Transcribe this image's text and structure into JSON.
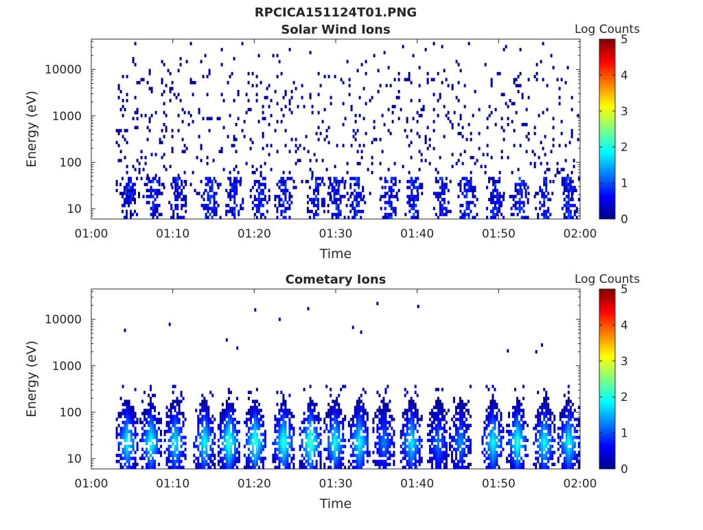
{
  "figure": {
    "title": "RPCICA151124T01.PNG"
  },
  "colorbar_gradient": [
    "#00008f",
    "#0000ff",
    "#0080ff",
    "#00ffff",
    "#80ff80",
    "#ffff00",
    "#ff8000",
    "#ff0000",
    "#800000"
  ],
  "chart_data": [
    {
      "type": "heatmap",
      "title": "Solar Wind Ions",
      "xlabel": "Time",
      "ylabel": "Energy (eV)",
      "x_ticks": [
        "01:00",
        "01:10",
        "01:20",
        "01:30",
        "01:40",
        "01:50",
        "02:00"
      ],
      "x_range_minutes": [
        0,
        60
      ],
      "y_scale": "log",
      "y_ticks": [
        10,
        100,
        1000,
        10000
      ],
      "y_tick_labels": [
        "10",
        "100",
        "1000",
        "10000"
      ],
      "y_range": [
        6,
        45000
      ],
      "colorbar_label": "Log Counts",
      "colorbar_range": [
        0,
        5
      ],
      "colorbar_ticks": [
        "0",
        "1",
        "2",
        "3",
        "4",
        "5"
      ],
      "data_start_minute": 3,
      "low_energy_bursts": [
        4.5,
        7.5,
        10.5,
        14.5,
        17.5,
        20.5,
        23.5,
        27.5,
        30,
        32.5,
        36.5,
        39.5,
        43,
        46,
        49.5,
        52.5,
        55.5,
        58.5
      ],
      "peak_log_counts": 1.2
    },
    {
      "type": "heatmap",
      "title": "Cometary Ions",
      "xlabel": "Time",
      "ylabel": "Energy (eV)",
      "x_ticks": [
        "01:00",
        "01:10",
        "01:20",
        "01:30",
        "01:40",
        "01:50",
        "02:00"
      ],
      "x_range_minutes": [
        0,
        60
      ],
      "y_scale": "log",
      "y_ticks": [
        10,
        100,
        1000,
        10000
      ],
      "y_tick_labels": [
        "10",
        "100",
        "1000",
        "10000"
      ],
      "y_range": [
        6,
        45000
      ],
      "colorbar_label": "Log Counts",
      "colorbar_range": [
        0,
        5
      ],
      "colorbar_ticks": [
        "0",
        "1",
        "2",
        "3",
        "4",
        "5"
      ],
      "data_start_minute": 3,
      "bursts": [
        {
          "minute": 4.3,
          "peak_log_counts": 2.0
        },
        {
          "minute": 7.2,
          "peak_log_counts": 2.1
        },
        {
          "minute": 10.2,
          "peak_log_counts": 1.9
        },
        {
          "minute": 13.8,
          "peak_log_counts": 2.0
        },
        {
          "minute": 16.8,
          "peak_log_counts": 2.3
        },
        {
          "minute": 20.0,
          "peak_log_counts": 2.3
        },
        {
          "minute": 23.5,
          "peak_log_counts": 2.2
        },
        {
          "minute": 26.8,
          "peak_log_counts": 2.4
        },
        {
          "minute": 29.8,
          "peak_log_counts": 2.0
        },
        {
          "minute": 32.8,
          "peak_log_counts": 2.0
        },
        {
          "minute": 35.8,
          "peak_log_counts": 1.3
        },
        {
          "minute": 39.2,
          "peak_log_counts": 1.9
        },
        {
          "minute": 42.5,
          "peak_log_counts": 1.3
        },
        {
          "minute": 45.2,
          "peak_log_counts": 1.4
        },
        {
          "minute": 49.2,
          "peak_log_counts": 2.0
        },
        {
          "minute": 52.2,
          "peak_log_counts": 2.2
        },
        {
          "minute": 55.5,
          "peak_log_counts": 2.0
        },
        {
          "minute": 58.5,
          "peak_log_counts": 2.0
        }
      ],
      "sparse_high_energy_points": [
        {
          "minute": 4.0,
          "energy": 5800
        },
        {
          "minute": 9.5,
          "energy": 7800
        },
        {
          "minute": 16.5,
          "energy": 3600
        },
        {
          "minute": 17.8,
          "energy": 2400
        },
        {
          "minute": 20.0,
          "energy": 16000
        },
        {
          "minute": 23.0,
          "energy": 10000
        },
        {
          "minute": 26.5,
          "energy": 17000
        },
        {
          "minute": 32.0,
          "energy": 6700
        },
        {
          "minute": 33.0,
          "energy": 5300
        },
        {
          "minute": 35.0,
          "energy": 22000
        },
        {
          "minute": 40.0,
          "energy": 19000
        },
        {
          "minute": 51.0,
          "energy": 2100
        },
        {
          "minute": 54.5,
          "energy": 2000
        },
        {
          "minute": 55.2,
          "energy": 2800
        }
      ]
    }
  ]
}
